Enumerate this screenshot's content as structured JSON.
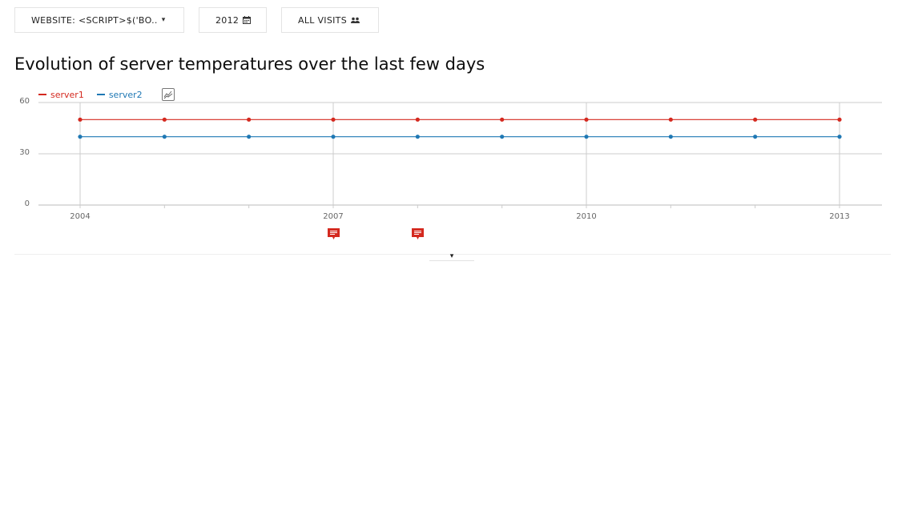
{
  "toolbar": {
    "site_label": "WEBSITE: <SCRIPT>$('BO..",
    "site_icon": "caret-down-icon",
    "date_label": "2012",
    "date_icon": "calendar-icon",
    "segment_label": "ALL VISITS",
    "segment_icon": "users-icon"
  },
  "title": "Evolution of server temperatures over the last few days",
  "legend": {
    "items": [
      {
        "label": "server1",
        "color": "#d4291f"
      },
      {
        "label": "server2",
        "color": "#1f78b4"
      }
    ],
    "metric_picker_icon": "line-chart-icon"
  },
  "annotations": {
    "icon": "comment-icon",
    "color": "#d4291f",
    "at_years": [
      2007,
      2008
    ]
  },
  "expand_icon": "caret-down-icon",
  "chart_data": {
    "type": "line",
    "x": [
      2004,
      2005,
      2006,
      2007,
      2008,
      2009,
      2010,
      2011,
      2012,
      2013
    ],
    "x_tick_labels": [
      "2004",
      "2007",
      "2010",
      "2013"
    ],
    "y_tick_labels": [
      "60",
      "30",
      "0"
    ],
    "ylim": [
      0,
      60
    ],
    "xlim": [
      2004,
      2013
    ],
    "grid": true,
    "series": [
      {
        "name": "server1",
        "color": "#d4291f",
        "values": [
          50,
          50,
          50,
          50,
          50,
          50,
          50,
          50,
          50,
          50
        ]
      },
      {
        "name": "server2",
        "color": "#1f78b4",
        "values": [
          40,
          40,
          40,
          40,
          40,
          40,
          40,
          40,
          40,
          40
        ]
      }
    ]
  }
}
